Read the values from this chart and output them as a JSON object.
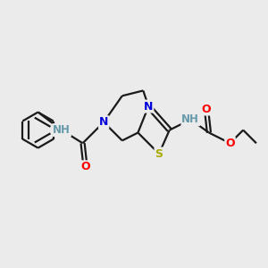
{
  "background_color": "#ebebeb",
  "bond_color": "#1a1a1a",
  "atom_colors": {
    "N": "#0000dd",
    "O": "#ff0000",
    "S": "#aaaa00",
    "H_color": "#6699aa",
    "C": "#1a1a1a"
  },
  "figsize": [
    3.0,
    3.0
  ],
  "dpi": 100
}
